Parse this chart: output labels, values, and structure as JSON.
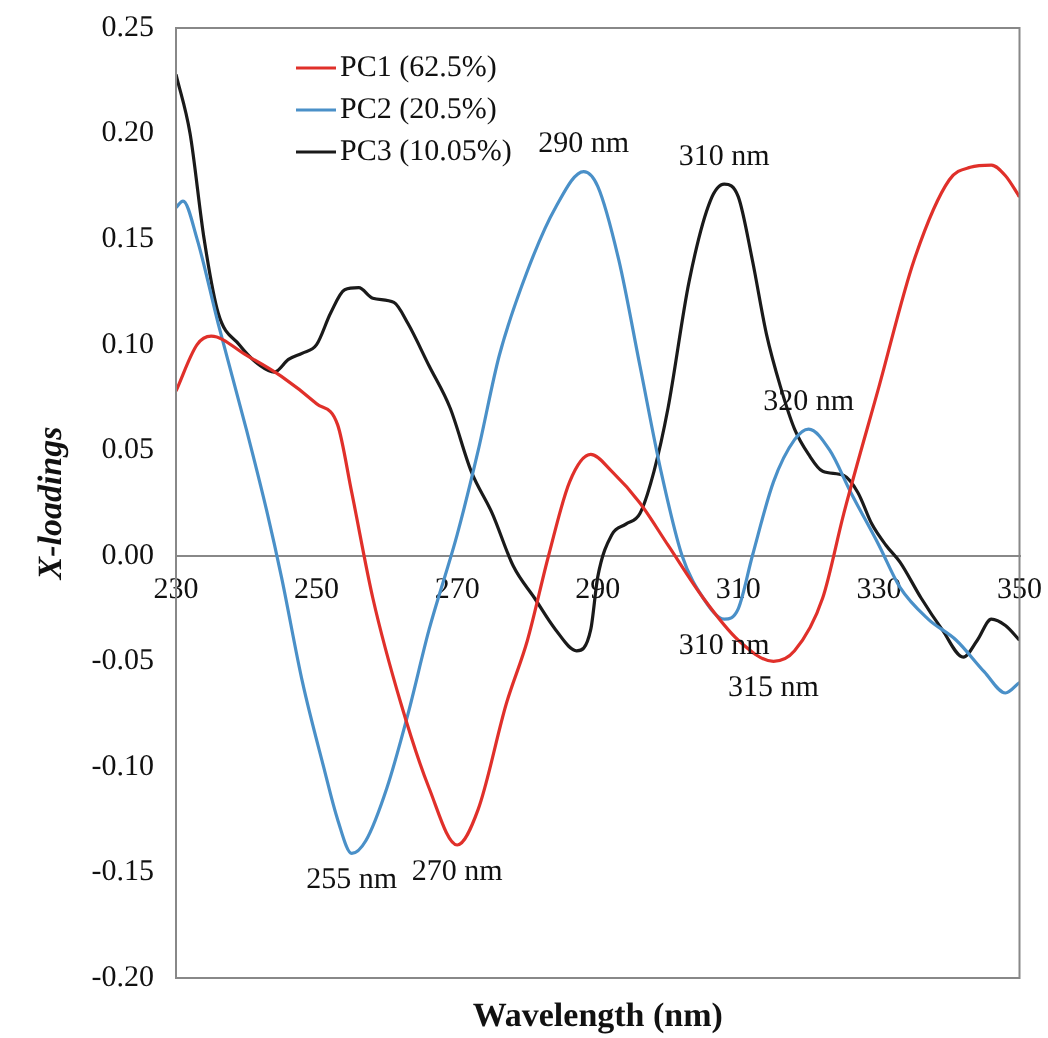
{
  "chart_data": {
    "type": "line",
    "xlabel": "Wavelength (nm)",
    "ylabel": "X-loadings",
    "xlim": [
      230,
      350
    ],
    "xticks": [
      230,
      250,
      270,
      290,
      310,
      330,
      350
    ],
    "ylim": [
      -0.2,
      0.25
    ],
    "yticks": [
      {
        "value": -0.2,
        "label": "-0.20"
      },
      {
        "value": -0.15,
        "label": "-0.15"
      },
      {
        "value": -0.1,
        "label": "-0.10"
      },
      {
        "value": -0.05,
        "label": "-0.05"
      },
      {
        "value": 0,
        "label": "0.00"
      },
      {
        "value": 0.05,
        "label": "0.05"
      },
      {
        "value": 0.1,
        "label": "0.10"
      },
      {
        "value": 0.15,
        "label": "0.15"
      },
      {
        "value": 0.2,
        "label": "0.20"
      },
      {
        "value": 0.25,
        "label": "0.25"
      }
    ],
    "grid": false,
    "legend": "top left",
    "marker": "none",
    "line_style": "solid",
    "series": [
      {
        "name": "PC1 (62.5%)",
        "color": "#e0302a",
        "x": [
          230,
          233,
          235,
          240,
          245,
          250,
          253,
          255,
          258,
          262,
          266,
          270,
          273,
          277,
          280,
          283,
          286,
          289,
          292,
          296,
          300,
          305,
          310,
          315,
          318,
          322,
          325,
          330,
          335,
          340,
          343,
          346,
          348,
          350
        ],
        "values": [
          0.078,
          0.1,
          0.104,
          0.095,
          0.085,
          0.072,
          0.062,
          0.03,
          -0.02,
          -0.07,
          -0.11,
          -0.137,
          -0.12,
          -0.07,
          -0.04,
          0.0,
          0.035,
          0.048,
          0.04,
          0.025,
          0.005,
          -0.02,
          -0.04,
          -0.05,
          -0.045,
          -0.02,
          0.02,
          0.08,
          0.14,
          0.178,
          0.184,
          0.185,
          0.18,
          0.17
        ]
      },
      {
        "name": "PC2 (20.5%)",
        "color": "#4a90c8",
        "x": [
          230,
          231,
          233,
          236,
          240,
          243,
          245,
          248,
          251,
          253,
          255,
          257,
          260,
          263,
          266,
          270,
          273,
          276,
          280,
          284,
          288,
          290,
          293,
          296,
          299,
          302,
          305,
          308,
          310,
          312,
          315,
          318,
          320,
          323,
          326,
          330,
          333,
          337,
          341,
          345,
          348,
          350
        ],
        "values": [
          0.165,
          0.168,
          0.15,
          0.11,
          0.06,
          0.02,
          -0.01,
          -0.06,
          -0.1,
          -0.125,
          -0.141,
          -0.135,
          -0.11,
          -0.075,
          -0.035,
          0.01,
          0.05,
          0.095,
          0.135,
          0.165,
          0.182,
          0.175,
          0.14,
          0.09,
          0.04,
          0.0,
          -0.02,
          -0.03,
          -0.025,
          0.0,
          0.035,
          0.055,
          0.06,
          0.05,
          0.03,
          0.005,
          -0.015,
          -0.03,
          -0.04,
          -0.055,
          -0.065,
          -0.06
        ]
      },
      {
        "name": "PC3 (10.05%)",
        "color": "#1a1a1a",
        "x": [
          230,
          232,
          234,
          236,
          239,
          242,
          244,
          246,
          248,
          250,
          252,
          254,
          256,
          258,
          261,
          263,
          266,
          269,
          272,
          275,
          278,
          281,
          284,
          287,
          289,
          290,
          292,
          294,
          296,
          298,
          300,
          303,
          306,
          308,
          310,
          312,
          314,
          316,
          318,
          320,
          322,
          325,
          327,
          329,
          331,
          333,
          336,
          339,
          342,
          344,
          346,
          348,
          350
        ],
        "values": [
          0.228,
          0.2,
          0.15,
          0.115,
          0.1,
          0.09,
          0.087,
          0.093,
          0.096,
          0.1,
          0.115,
          0.126,
          0.127,
          0.122,
          0.12,
          0.11,
          0.09,
          0.07,
          0.04,
          0.02,
          -0.005,
          -0.02,
          -0.035,
          -0.045,
          -0.035,
          -0.01,
          0.01,
          0.015,
          0.02,
          0.04,
          0.07,
          0.13,
          0.168,
          0.176,
          0.17,
          0.14,
          0.105,
          0.08,
          0.06,
          0.048,
          0.04,
          0.038,
          0.03,
          0.015,
          0.005,
          -0.003,
          -0.02,
          -0.035,
          -0.048,
          -0.04,
          -0.03,
          -0.033,
          -0.04
        ]
      }
    ],
    "annotations": [
      {
        "text": "290 nm",
        "x": 288,
        "y": 0.182
      },
      {
        "text": "310 nm",
        "x": 308,
        "y": 0.176
      },
      {
        "text": "320 nm",
        "x": 320,
        "y": 0.06
      },
      {
        "text": "255 nm",
        "x": 255,
        "y": -0.141
      },
      {
        "text": "270 nm",
        "x": 270,
        "y": -0.137
      },
      {
        "text": "310 nm",
        "x": 308,
        "y": -0.03
      },
      {
        "text": "315 nm",
        "x": 315,
        "y": -0.05
      }
    ]
  }
}
